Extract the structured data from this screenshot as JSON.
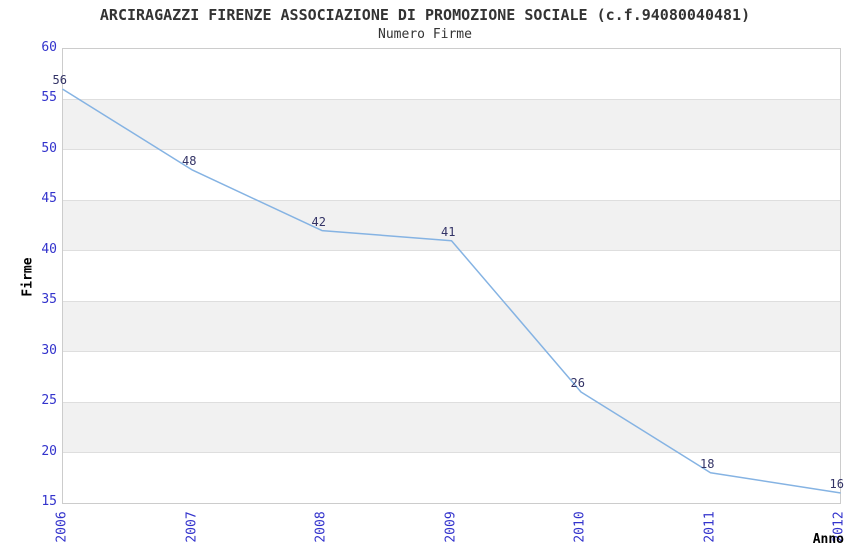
{
  "title": "ARCIRAGAZZI FIRENZE ASSOCIAZIONE DI PROMOZIONE SOCIALE (c.f.94080040481)",
  "subtitle": "Numero Firme",
  "chart_data": {
    "type": "line",
    "x": [
      2006,
      2007,
      2008,
      2009,
      2010,
      2011,
      2012
    ],
    "values": [
      56,
      48,
      42,
      41,
      26,
      18,
      16
    ],
    "title": "ARCIRAGAZZI FIRENZE ASSOCIAZIONE DI PROMOZIONE SOCIALE (c.f.94080040481)",
    "subtitle": "Numero Firme",
    "xlabel": "Anno",
    "ylabel": "Firme",
    "ylim": [
      15,
      60
    ],
    "ytick_step": 5,
    "grid": "alternating-horizontal-bands",
    "legend": "none",
    "point_labels_visible": true,
    "colors": {
      "line": "#85b3e3",
      "tick_label": "#3333cc",
      "point_label": "#333366",
      "band_fill": "#f1f1f1",
      "band_edge": "#dedede",
      "plot_border": "#cccccc",
      "title_text": "#333333",
      "axis_title_text": "#000000"
    }
  }
}
